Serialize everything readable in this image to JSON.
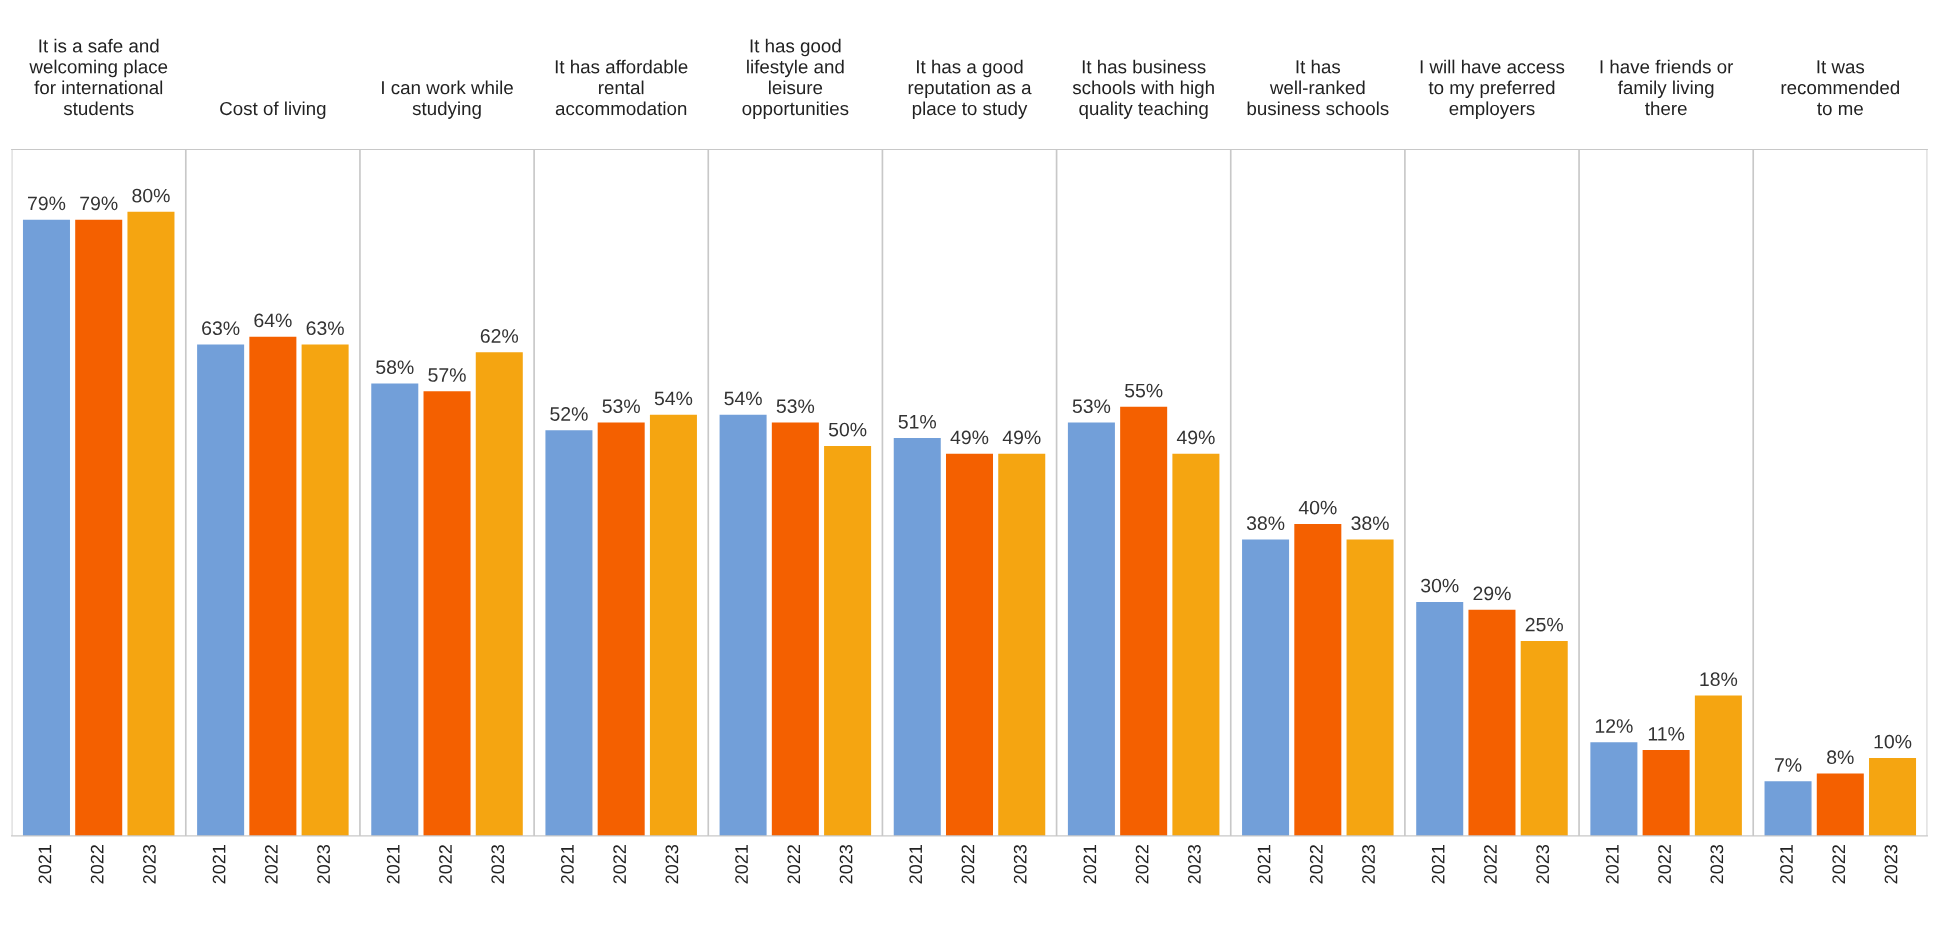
{
  "chart_data": {
    "type": "bar",
    "categories": [
      "It is a safe and\nwelcoming place\nfor international\nstudents",
      "Cost of living",
      "I can work while\nstudying",
      "It has affordable\nrental\naccommodation",
      "It has good\nlifestyle and\nleisure\nopportunities",
      "It has a good\nreputation as a\nplace to study",
      "It has business\nschools with high\nquality teaching",
      "It has\nwell-ranked\nbusiness schools",
      "I will have access\nto my preferred\nemployers",
      "I have friends or\nfamily living\nthere",
      "It was\nrecommended\nto me"
    ],
    "series": [
      {
        "name": "2021",
        "color": "#729fd9",
        "values": [
          79,
          63,
          58,
          52,
          54,
          51,
          53,
          38,
          30,
          12,
          7
        ],
        "value_labels": [
          "79%",
          "63%",
          "58%",
          "52%",
          "54%",
          "51%",
          "53%",
          "38%",
          "30%",
          "12%",
          "7%"
        ]
      },
      {
        "name": "2022",
        "color": "#f46000",
        "values": [
          79,
          64,
          57,
          53,
          53,
          49,
          55,
          40,
          29,
          11,
          8
        ],
        "value_labels": [
          "79%",
          "64%",
          "57%",
          "53%",
          "53%",
          "49%",
          "55%",
          "40%",
          "29%",
          "11%",
          "8%"
        ]
      },
      {
        "name": "2023",
        "color": "#f5a511",
        "values": [
          80,
          63,
          62,
          54,
          50,
          49,
          49,
          38,
          25,
          18,
          10
        ],
        "value_labels": [
          "80%",
          "63%",
          "62%",
          "54%",
          "50%",
          "49%",
          "49%",
          "38%",
          "25%",
          "18%",
          "10%"
        ]
      }
    ],
    "legend": false
  }
}
